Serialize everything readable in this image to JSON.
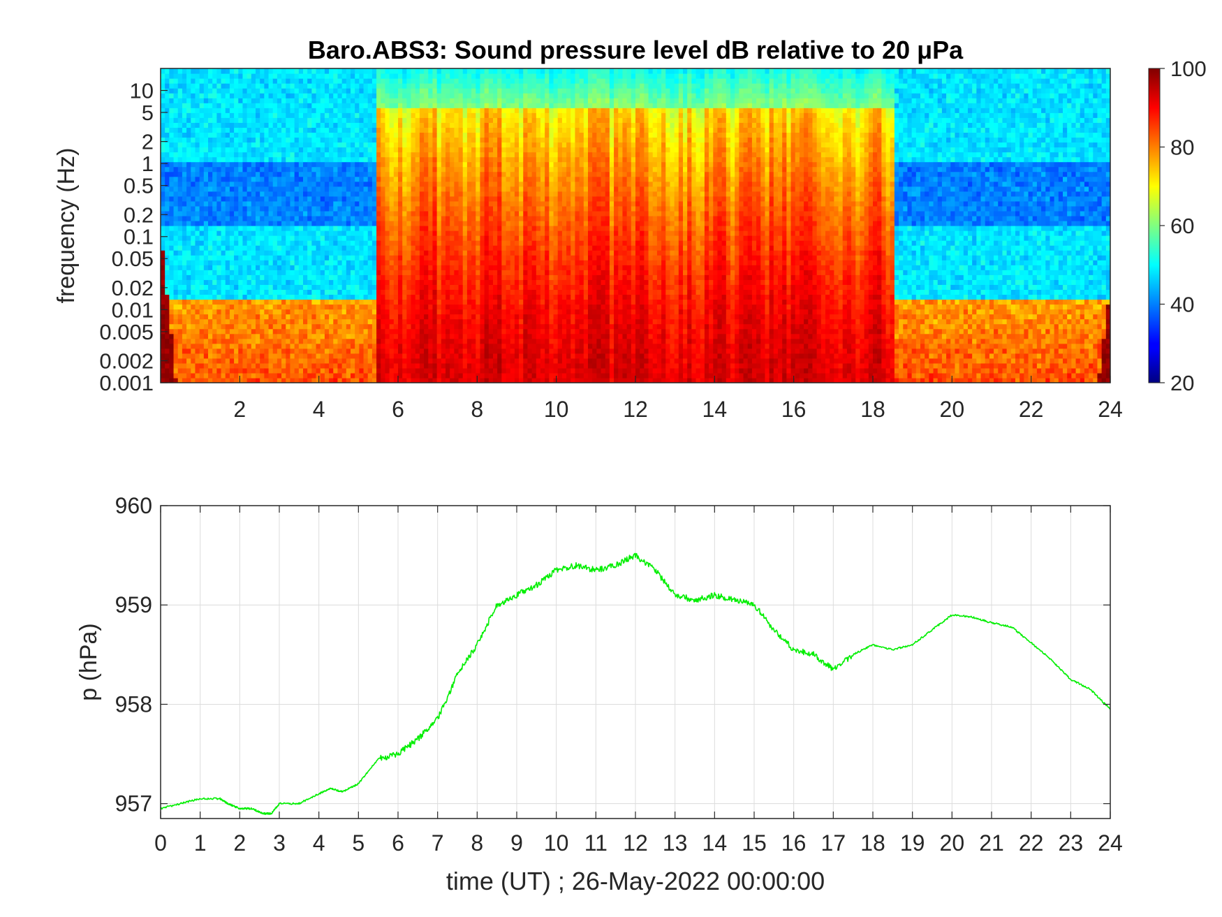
{
  "chart_data": [
    {
      "type": "heatmap",
      "title": "Baro.ABS3: Sound pressure level dB relative to 20 μPa",
      "ylabel": "frequency (Hz)",
      "xlabel": "",
      "xlim": [
        0,
        24
      ],
      "x_ticks": [
        2,
        4,
        6,
        8,
        10,
        12,
        14,
        16,
        18,
        20,
        22,
        24
      ],
      "x_tick_labels": [
        "2",
        "4",
        "6",
        "8",
        "10",
        "12",
        "14",
        "16",
        "18",
        "20",
        "22",
        "24"
      ],
      "y_scale": "log",
      "ylim": [
        0.001,
        20
      ],
      "y_ticks": [
        0.001,
        0.002,
        0.005,
        0.01,
        0.02,
        0.05,
        0.1,
        0.2,
        0.5,
        1,
        2,
        5,
        10
      ],
      "y_tick_labels": [
        "0.001",
        "0.002",
        "0.005",
        "0.01",
        "0.02",
        "0.05",
        "0.1",
        "0.2",
        "0.5",
        "1",
        "2",
        "5",
        "10"
      ],
      "colormap": "jet",
      "colorbar": {
        "range": [
          20,
          100
        ],
        "ticks": [
          20,
          40,
          60,
          80,
          100
        ],
        "tick_labels": [
          "20",
          "40",
          "60",
          "80",
          "100"
        ]
      },
      "time_segments_hours": [
        {
          "from": 0,
          "to": 5.5,
          "activity": "quiet"
        },
        {
          "from": 5.5,
          "to": 18.5,
          "activity": "loud"
        },
        {
          "from": 18.5,
          "to": 24,
          "activity": "quiet"
        }
      ],
      "typical_level_db": {
        "quiet_high_freq": 48,
        "quiet_low_freq": 84,
        "loud_high_freq": 65,
        "loud_low_freq": 92
      }
    },
    {
      "type": "line",
      "title": "",
      "xlabel": "time (UT) ; 26-May-2022 00:00:00",
      "ylabel": "p (hPa)",
      "xlim": [
        0,
        24
      ],
      "ylim": [
        956.85,
        960
      ],
      "x_ticks": [
        0,
        1,
        2,
        3,
        4,
        5,
        6,
        7,
        8,
        9,
        10,
        11,
        12,
        13,
        14,
        15,
        16,
        17,
        18,
        19,
        20,
        21,
        22,
        23,
        24
      ],
      "x_tick_labels": [
        "0",
        "1",
        "2",
        "3",
        "4",
        "5",
        "6",
        "7",
        "8",
        "9",
        "10",
        "11",
        "12",
        "13",
        "14",
        "15",
        "16",
        "17",
        "18",
        "19",
        "20",
        "21",
        "22",
        "23",
        "24"
      ],
      "y_ticks": [
        957,
        958,
        959,
        960
      ],
      "y_tick_labels": [
        "957",
        "958",
        "959",
        "960"
      ],
      "grid": true,
      "line_color": "#00ee00",
      "series": [
        {
          "x": [
            0,
            0.5,
            1,
            1.5,
            1.7,
            2,
            2.3,
            2.6,
            2.8,
            3,
            3.5,
            4,
            4.3,
            4.6,
            5,
            5.5,
            6,
            6.5,
            7,
            7.5,
            8,
            8.5,
            9,
            9.5,
            10,
            10.5,
            11,
            11.5,
            12,
            12.5,
            13,
            13.5,
            14,
            14.5,
            15,
            15.5,
            16,
            16.5,
            17,
            17.5,
            18,
            18.5,
            19,
            19.5,
            20,
            20.5,
            21,
            21.5,
            22,
            22.5,
            23,
            23.5,
            24
          ],
          "y": [
            956.95,
            957.0,
            957.05,
            957.05,
            957.0,
            956.95,
            956.95,
            956.9,
            956.9,
            957.0,
            957.0,
            957.1,
            957.15,
            957.12,
            957.2,
            957.45,
            957.5,
            957.65,
            957.85,
            958.3,
            958.6,
            959.0,
            959.1,
            959.2,
            959.35,
            959.4,
            959.35,
            959.4,
            959.5,
            959.35,
            959.1,
            959.05,
            959.1,
            959.05,
            959.0,
            958.75,
            958.55,
            958.5,
            958.35,
            958.5,
            958.6,
            958.55,
            958.6,
            958.75,
            958.9,
            958.88,
            958.82,
            958.78,
            958.62,
            958.45,
            958.25,
            958.15,
            957.95
          ]
        }
      ]
    }
  ]
}
